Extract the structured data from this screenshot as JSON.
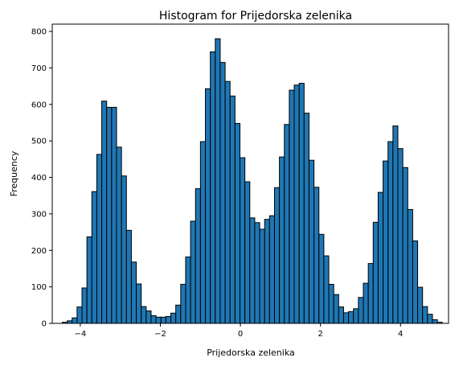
{
  "chart_data": {
    "type": "bar",
    "title": "Histogram for Prijedorska zelenika",
    "xlabel": "Prijedorska zelenika",
    "ylabel": "Frequency",
    "xlim": [
      -4.7,
      5.2
    ],
    "ylim": [
      0,
      820
    ],
    "xticks": [
      -4,
      -2,
      0,
      2,
      4
    ],
    "yticks": [
      0,
      100,
      200,
      300,
      400,
      500,
      600,
      700,
      800
    ],
    "grid": false,
    "bar_color": "#1f77b4",
    "edge_color": "#000000",
    "bin_start": -4.45,
    "bin_width": 0.1233,
    "counts": [
      3,
      7,
      15,
      45,
      97,
      237,
      361,
      463,
      609,
      592,
      592,
      483,
      404,
      255,
      168,
      108,
      46,
      34,
      21,
      17,
      17,
      19,
      28,
      50,
      107,
      182,
      280,
      369,
      498,
      643,
      744,
      780,
      715,
      663,
      623,
      548,
      454,
      388,
      289,
      276,
      258,
      285,
      295,
      372,
      456,
      545,
      639,
      653,
      658,
      576,
      447,
      373,
      244,
      185,
      107,
      79,
      45,
      29,
      32,
      40,
      71,
      110,
      164,
      277,
      359,
      445,
      498,
      541,
      479,
      427,
      312,
      226,
      99,
      46,
      25,
      10,
      3
    ]
  }
}
